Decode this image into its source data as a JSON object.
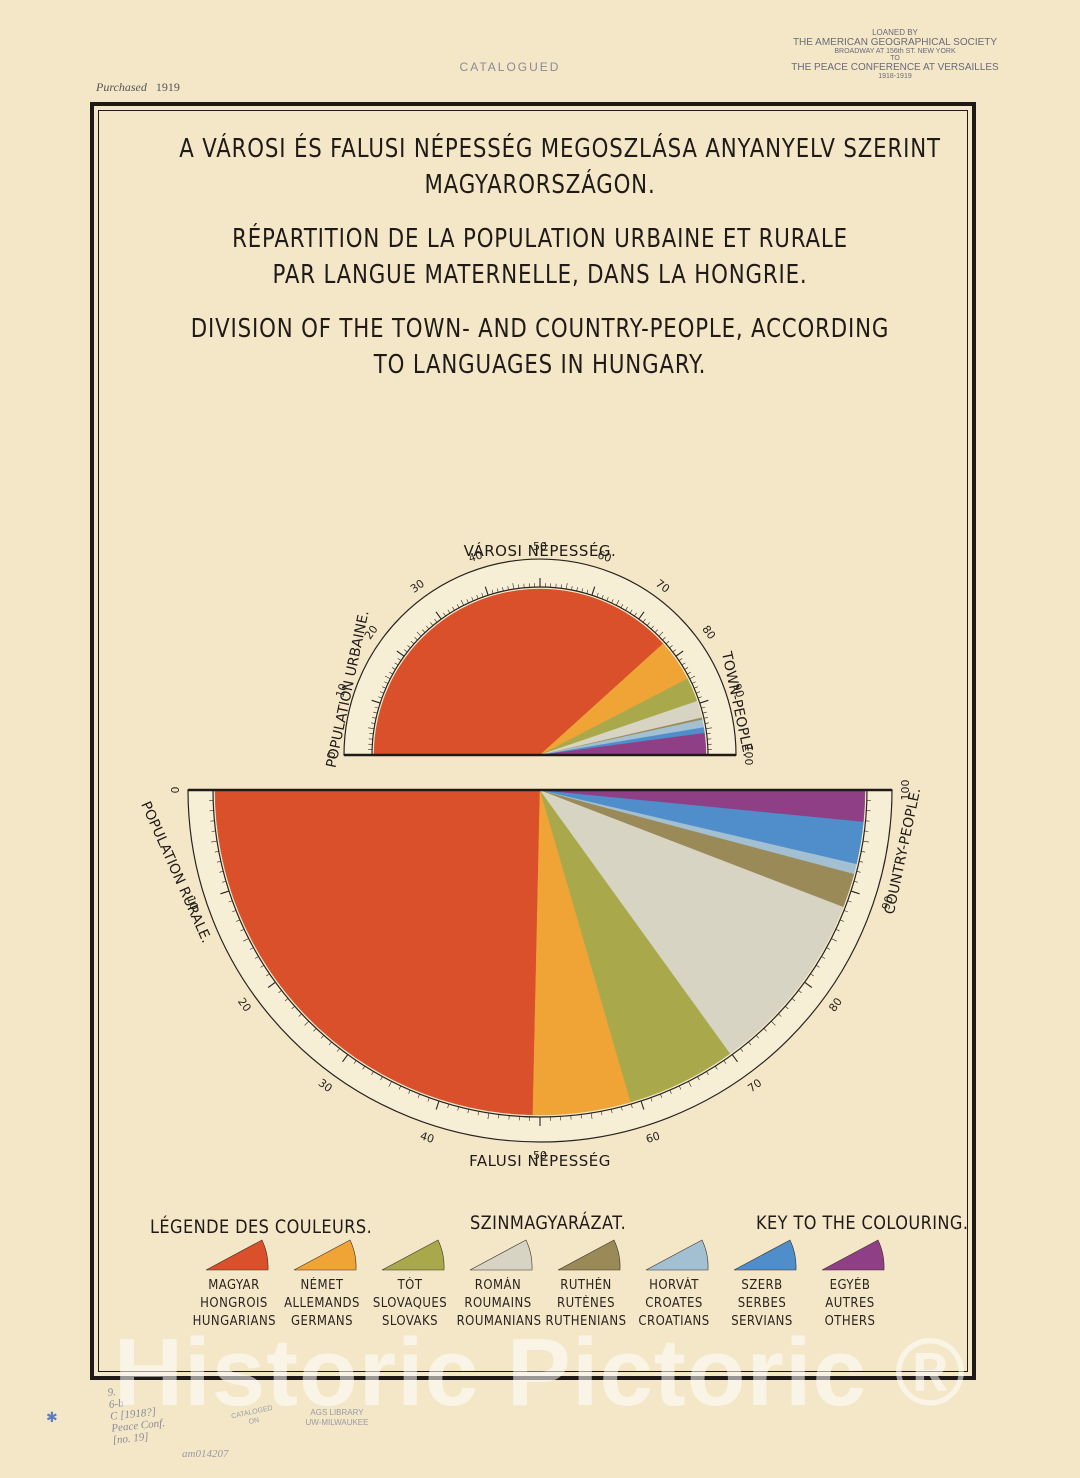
{
  "stamps": {
    "purchased_label": "Purchased",
    "purchased_year": "1919",
    "catalogued": "CATALOGUED",
    "loaned": [
      "LOANED BY",
      "THE AMERICAN GEOGRAPHICAL SOCIETY",
      "BROADWAY AT 156th ST. NEW YORK",
      "TO",
      "THE PEACE CONFERENCE AT VERSAILLES",
      "1918-1919"
    ]
  },
  "titles": {
    "hu_1": "A VÁROSI ÉS FALUSI NÉPESSÉG MEGOSZLÁSA ANYANYELV SZERINT",
    "hu_2": "MAGYARORSZÁGON.",
    "fr_1": "RÉPARTITION DE LA POPULATION URBAINE ET RURALE",
    "fr_2": "PAR LANGUE MATERNELLE, DANS LA HONGRIE.",
    "en_1": "DIVISION OF THE TOWN- AND COUNTRY-PEOPLE, ACCORDING",
    "en_2": "TO LANGUAGES  IN HUNGARY."
  },
  "chart_data": [
    {
      "type": "pie",
      "title": "VÁROSI NÉPESSÉG.",
      "left_label": "POPULATION URBAINE.",
      "right_label": "TOWN-PEOPLE.",
      "scale": [
        0,
        100
      ],
      "ticks": [
        0,
        10,
        20,
        30,
        40,
        50,
        60,
        70,
        80,
        90,
        100
      ],
      "categories": [
        "Magyar",
        "Német",
        "Tót",
        "Román",
        "Ruthén",
        "Horvát",
        "Szerb",
        "Egyéb"
      ],
      "values": [
        76.6,
        8.2,
        4.7,
        3.3,
        0.4,
        1.5,
        1.1,
        4.2
      ]
    },
    {
      "type": "pie",
      "title": "FALUSI NÉPESSÉG",
      "left_label": "POPULATION RURALE.",
      "right_label": "COUNTRY-PEOPLE.",
      "scale": [
        0,
        100
      ],
      "ticks": [
        0,
        10,
        20,
        30,
        40,
        50,
        60,
        70,
        80,
        90,
        100
      ],
      "categories": [
        "Magyar",
        "Német",
        "Tót",
        "Román",
        "Ruthén",
        "Horvát",
        "Szerb",
        "Egyéb"
      ],
      "values": [
        49.3,
        9.7,
        10.9,
        18.4,
        3.4,
        1.0,
        4.2,
        3.1
      ]
    }
  ],
  "legend": {
    "title_fr": "LÉGENDE DES COULEURS.",
    "title_hu": "SZINMAGYARÁZAT.",
    "title_en": "KEY TO THE COLOURING.",
    "items": [
      {
        "hu": "MAGYAR",
        "fr": "HONGROIS",
        "en": "HUNGARIANS",
        "color": "#d9502a"
      },
      {
        "hu": "NÉMET",
        "fr": "ALLEMANDS",
        "en": "GERMANS",
        "color": "#f0a436"
      },
      {
        "hu": "TÓT",
        "fr": "SLOVAQUES",
        "en": "SLOVAKS",
        "color": "#a9a94b"
      },
      {
        "hu": "ROMÁN",
        "fr": "ROUMAINS",
        "en": "ROUMANIANS",
        "color": "#d8d4c3"
      },
      {
        "hu": "RUTHÉN",
        "fr": "RUTÈNES",
        "en": "RUTHENIANS",
        "color": "#998a58"
      },
      {
        "hu": "HORVÁT",
        "fr": "CROATES",
        "en": "CROATIANS",
        "color": "#a3c0d2"
      },
      {
        "hu": "SZERB",
        "fr": "SERBES",
        "en": "SERVIANS",
        "color": "#4f8dcb"
      },
      {
        "hu": "EGYÉB",
        "fr": "AUTRES",
        "en": "OTHERS",
        "color": "#8e3f86"
      }
    ]
  },
  "margin_notes": {
    "note": [
      "9.",
      "6-b",
      "C [1918?]",
      "Peace Conf.",
      "[no. 19]"
    ],
    "catalogued_on": [
      "CATALOGED",
      "ON"
    ],
    "library": [
      "AGS LIBRARY",
      "UW-MILWAUKEE"
    ],
    "accession": "am014207"
  },
  "watermark": "Historic Pictoric ®"
}
